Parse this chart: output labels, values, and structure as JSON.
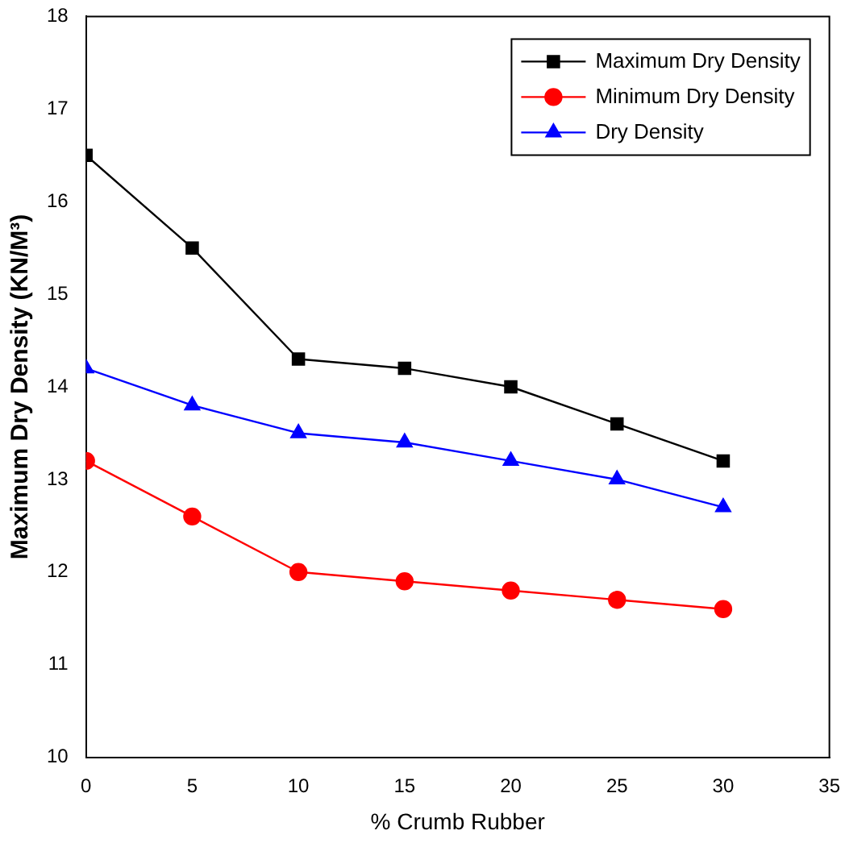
{
  "chart_data": {
    "type": "line",
    "xlabel": "% Crumb Rubber",
    "ylabel": "Maximum Dry Density (KN/M³)",
    "x": [
      0,
      5,
      10,
      15,
      20,
      25,
      30
    ],
    "xlim": [
      0,
      35
    ],
    "xticks": [
      0,
      5,
      10,
      15,
      20,
      25,
      30,
      35
    ],
    "ylim": [
      10,
      18
    ],
    "yticks": [
      10,
      11,
      12,
      13,
      14,
      15,
      16,
      17,
      18
    ],
    "grid": false,
    "legend": "top right",
    "line_style": "solid",
    "series": [
      {
        "name": "Maximum Dry Density",
        "color": "#000000",
        "marker": "square",
        "values": [
          16.5,
          15.5,
          14.3,
          14.2,
          14.0,
          13.6,
          13.2
        ]
      },
      {
        "name": "Minimum Dry Density",
        "color": "#ff0000",
        "marker": "circle",
        "values": [
          13.2,
          12.6,
          12.0,
          11.9,
          11.8,
          11.7,
          11.6
        ]
      },
      {
        "name": "Dry Density",
        "color": "#0000ff",
        "marker": "triangle",
        "values": [
          14.2,
          13.8,
          13.5,
          13.4,
          13.2,
          13.0,
          12.7
        ]
      }
    ]
  }
}
